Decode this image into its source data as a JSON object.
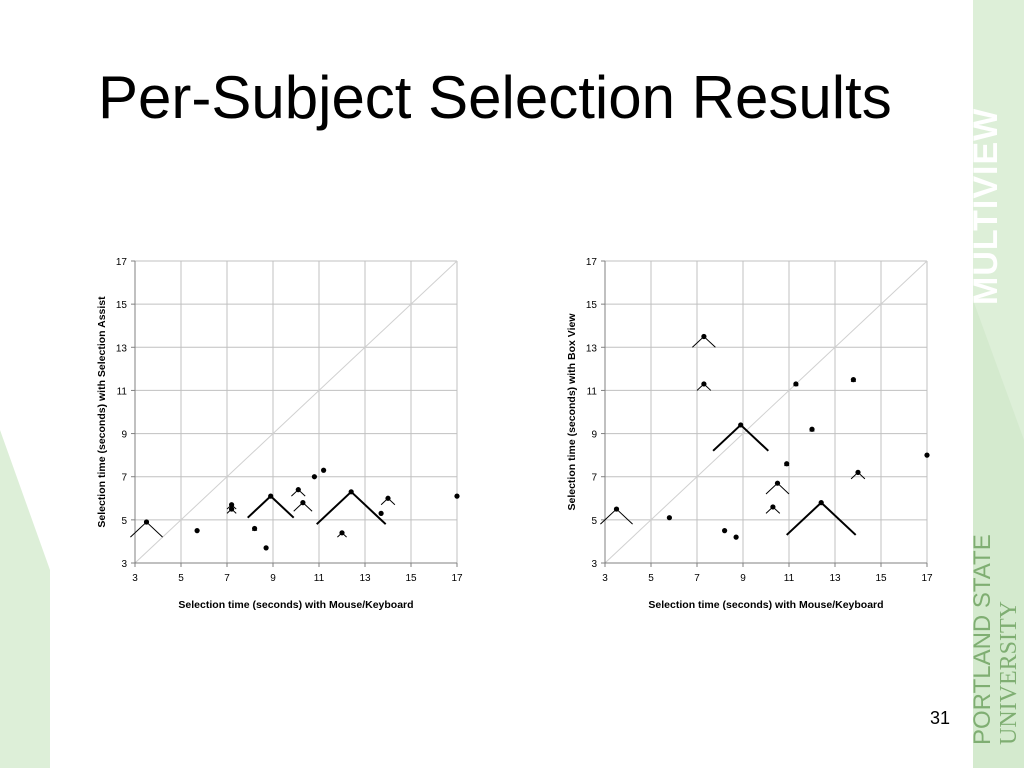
{
  "slide": {
    "title": "Per-Subject Selection Results",
    "page_number": "31",
    "brand_vertical": "MULTIVIEW",
    "brand_university_line1": "PORTLAND STATE",
    "brand_university_line2": "UNIVERSITY"
  },
  "colors": {
    "accent_green": "#ddefd8",
    "brand_green": "#ffffff",
    "university_green": "#7fae72",
    "grid": "#c0c0c0",
    "marks": "#000000"
  },
  "chart_data": [
    {
      "type": "scatter",
      "title": "",
      "xlabel": "Selection time (seconds) with Mouse/Keyboard",
      "ylabel": "Selection time (seconds) with Selection Assist",
      "xlim": [
        3,
        17
      ],
      "ylim": [
        3,
        17
      ],
      "x_ticks": [
        3,
        5,
        7,
        9,
        11,
        13,
        15,
        17
      ],
      "y_ticks": [
        3,
        5,
        7,
        9,
        11,
        13,
        15,
        17
      ],
      "grid": true,
      "diagonal_reference": true,
      "points": [
        {
          "x": 3.5,
          "y": 4.9,
          "err": 0.7
        },
        {
          "x": 5.7,
          "y": 4.5,
          "err": 0
        },
        {
          "x": 7.2,
          "y": 5.7,
          "err": 0.2
        },
        {
          "x": 7.2,
          "y": 5.5,
          "err": 0.2
        },
        {
          "x": 8.2,
          "y": 4.6,
          "err": 0.1
        },
        {
          "x": 8.7,
          "y": 3.7,
          "err": 0
        },
        {
          "x": 8.9,
          "y": 6.1,
          "err": 1.0
        },
        {
          "x": 10.1,
          "y": 6.4,
          "err": 0.3
        },
        {
          "x": 10.3,
          "y": 5.8,
          "err": 0.4
        },
        {
          "x": 10.8,
          "y": 7.0,
          "err": 0
        },
        {
          "x": 11.2,
          "y": 7.3,
          "err": 0
        },
        {
          "x": 12.0,
          "y": 4.4,
          "err": 0.2
        },
        {
          "x": 12.4,
          "y": 6.3,
          "err": 1.5
        },
        {
          "x": 13.7,
          "y": 5.3,
          "err": 0
        },
        {
          "x": 14.0,
          "y": 6.0,
          "err": 0.3
        },
        {
          "x": 17.0,
          "y": 6.1,
          "err": 0
        }
      ]
    },
    {
      "type": "scatter",
      "title": "",
      "xlabel": "Selection time (seconds) with Mouse/Keyboard",
      "ylabel": "Selection time (seconds) with Box View",
      "xlim": [
        3,
        17
      ],
      "ylim": [
        3,
        17
      ],
      "x_ticks": [
        3,
        5,
        7,
        9,
        11,
        13,
        15,
        17
      ],
      "y_ticks": [
        3,
        5,
        7,
        9,
        11,
        13,
        15,
        17
      ],
      "grid": true,
      "diagonal_reference": true,
      "points": [
        {
          "x": 3.5,
          "y": 5.5,
          "err": 0.7
        },
        {
          "x": 5.8,
          "y": 5.1,
          "err": 0
        },
        {
          "x": 7.3,
          "y": 13.5,
          "err": 0.5
        },
        {
          "x": 7.3,
          "y": 11.3,
          "err": 0.3
        },
        {
          "x": 8.2,
          "y": 4.5,
          "err": 0
        },
        {
          "x": 8.7,
          "y": 4.2,
          "err": 0
        },
        {
          "x": 8.9,
          "y": 9.4,
          "err": 1.2
        },
        {
          "x": 10.3,
          "y": 5.6,
          "err": 0.3
        },
        {
          "x": 10.5,
          "y": 6.7,
          "err": 0.5
        },
        {
          "x": 10.9,
          "y": 7.6,
          "err": 0.1
        },
        {
          "x": 11.3,
          "y": 11.3,
          "err": 0.1
        },
        {
          "x": 12.0,
          "y": 9.2,
          "err": 0.1
        },
        {
          "x": 12.4,
          "y": 5.8,
          "err": 1.5
        },
        {
          "x": 13.8,
          "y": 11.5,
          "err": 0.1
        },
        {
          "x": 14.0,
          "y": 7.2,
          "err": 0.3
        },
        {
          "x": 17.0,
          "y": 8.0,
          "err": 0
        }
      ]
    }
  ]
}
